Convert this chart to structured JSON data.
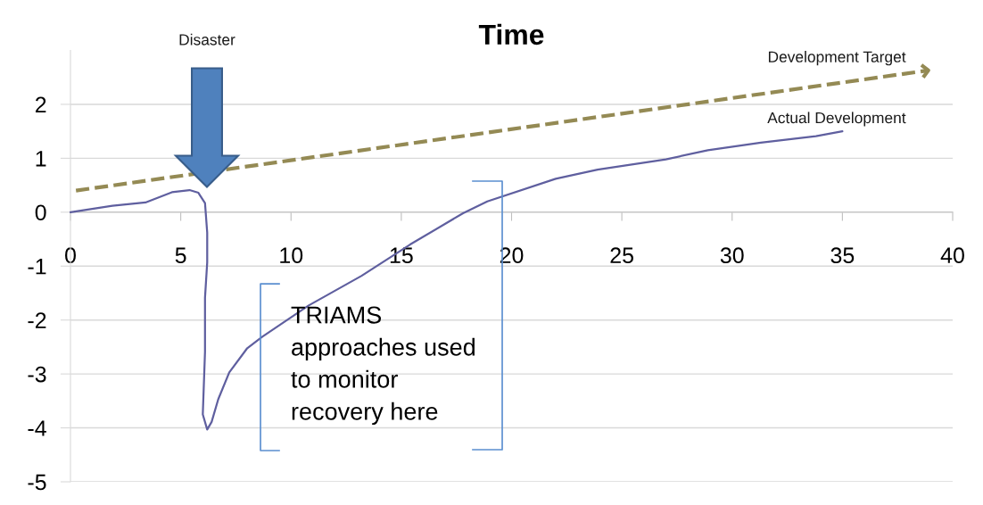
{
  "chart_data": {
    "type": "line",
    "title": "Time",
    "series": [
      {
        "name": "Actual Development",
        "color": "#5f5f9f",
        "x": [
          0,
          1.9,
          3.4,
          4.6,
          5.4,
          5.8,
          6.1,
          6.2,
          6.2,
          6.1,
          6.1,
          6.0,
          6.2,
          6.4,
          6.7,
          7.2,
          8.0,
          8.7,
          10.8,
          13.2,
          15.4,
          17.8,
          18.9,
          22.0,
          23.9,
          27.0,
          28.9,
          31.3,
          33.8,
          35.0
        ],
        "values": [
          0,
          0.12,
          0.18,
          0.37,
          0.41,
          0.36,
          0.17,
          -0.38,
          -0.93,
          -1.59,
          -2.59,
          -3.75,
          -4.03,
          -3.89,
          -3.47,
          -2.97,
          -2.53,
          -2.31,
          -1.73,
          -1.18,
          -0.6,
          -0.02,
          0.2,
          0.62,
          0.79,
          0.98,
          1.15,
          1.29,
          1.41,
          1.5
        ]
      },
      {
        "name": "Development Target",
        "color": "#948a54",
        "line_style": "dashed",
        "x": [
          0.25,
          38.9
        ],
        "values": [
          0.4,
          2.63
        ]
      }
    ],
    "xlim": [
      0,
      40
    ],
    "xticks": [
      0,
      5,
      10,
      15,
      20,
      25,
      30,
      35,
      40
    ],
    "ylim": [
      -5,
      3
    ],
    "yticks": [
      -5,
      -4,
      -3,
      -2,
      -1,
      0,
      1,
      2
    ],
    "grid": "y",
    "line_style": "solid",
    "annotations": [
      "Disaster",
      "TRIAMS\napproaches used\nto monitor\nrecovery here"
    ]
  }
}
